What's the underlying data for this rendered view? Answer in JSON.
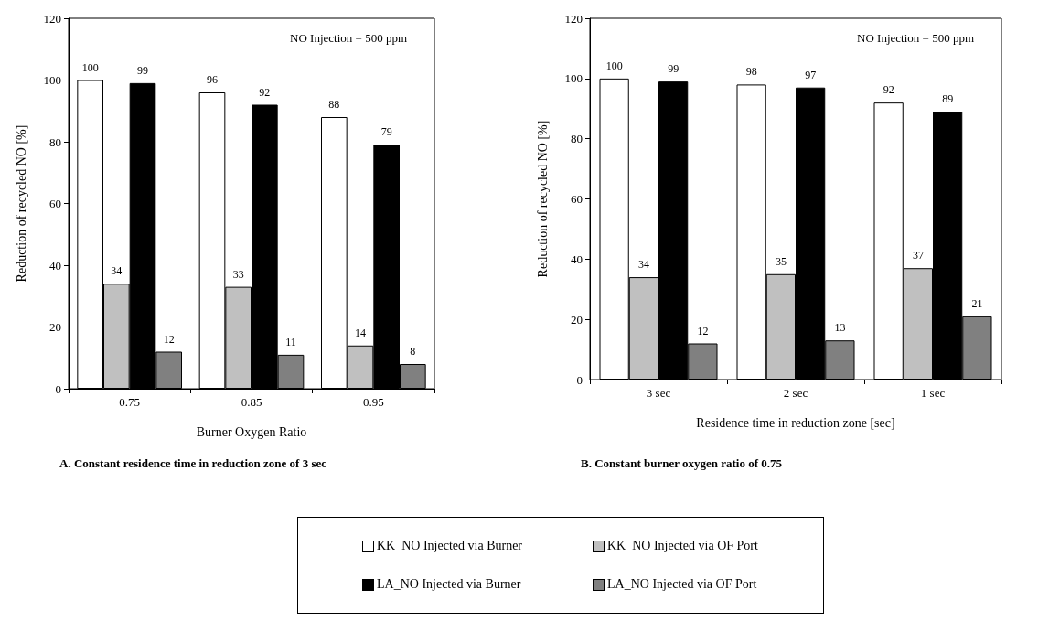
{
  "chart_data": [
    {
      "type": "bar",
      "title": "A. Constant residence time in reduction zone of 3 sec",
      "xlabel": "Burner Oxygen Ratio",
      "ylabel": "Reduction of recycled NO [%]",
      "annotations": [
        "NO Injection = 500 ppm"
      ],
      "categories": [
        "0.75",
        "0.85",
        "0.95"
      ],
      "series": [
        {
          "name": "KK_NO Injected via Burner",
          "color": "#ffffff",
          "values": [
            100,
            96,
            88
          ]
        },
        {
          "name": "KK_NO Injected via OF Port",
          "color": "#c0c0c0",
          "values": [
            34,
            33,
            14
          ]
        },
        {
          "name": "LA_NO Injected via Burner",
          "color": "#000000",
          "values": [
            99,
            92,
            79
          ]
        },
        {
          "name": "LA_NO Injected via OF Port",
          "color": "#808080",
          "values": [
            12,
            11,
            8
          ]
        }
      ],
      "ylim": [
        0,
        120
      ],
      "yticks": [
        0,
        20,
        40,
        60,
        80,
        100,
        120
      ],
      "data_labels": true,
      "grid": false,
      "legend": "bottom"
    },
    {
      "type": "bar",
      "title": "B. Constant burner oxygen ratio of 0.75",
      "xlabel": "Residence time in reduction zone [sec]",
      "ylabel": "Reduction of recycled NO [%]",
      "annotations": [
        "NO Injection = 500 ppm"
      ],
      "categories": [
        "3 sec",
        "2 sec",
        "1 sec"
      ],
      "series": [
        {
          "name": "KK_NO Injected via Burner",
          "color": "#ffffff",
          "values": [
            100,
            98,
            92
          ]
        },
        {
          "name": "KK_NO Injected via OF Port",
          "color": "#c0c0c0",
          "values": [
            34,
            35,
            37
          ]
        },
        {
          "name": "LA_NO Injected via Burner",
          "color": "#000000",
          "values": [
            99,
            97,
            89
          ]
        },
        {
          "name": "LA_NO Injected via OF Port",
          "color": "#808080",
          "values": [
            12,
            13,
            21
          ]
        }
      ],
      "ylim": [
        0,
        120
      ],
      "yticks": [
        0,
        20,
        40,
        60,
        80,
        100,
        120
      ],
      "data_labels": true,
      "grid": false,
      "legend": "bottom"
    }
  ]
}
